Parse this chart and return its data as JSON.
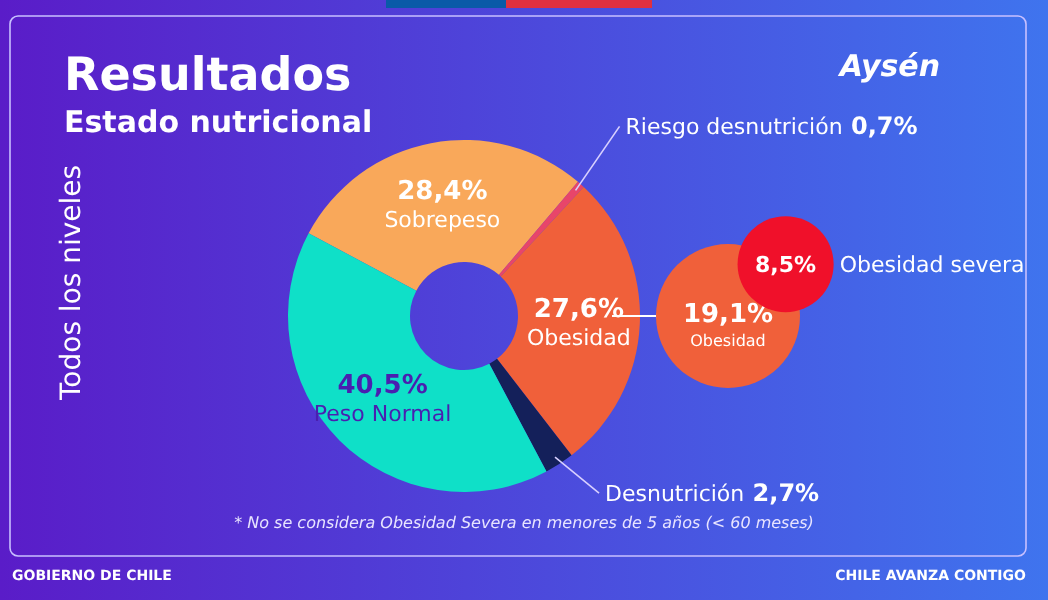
{
  "chart_data": [
    {
      "type": "donut",
      "title": "Resultados",
      "subtitle": "Estado nutricional",
      "categories": [
        "Sobrepeso",
        "Riesgo desnutrición",
        "Obesidad",
        "Desnutrición",
        "Peso Normal"
      ],
      "values": [
        28.4,
        0.7,
        27.6,
        2.7,
        40.5
      ],
      "value_labels": [
        "28,4%",
        "0,7%",
        "27,6%",
        "2,7%",
        "40,5%"
      ],
      "colors": [
        "#f9a85a",
        "#e8456a",
        "#f0603a",
        "#14205a",
        "#0fe0c8"
      ],
      "annotations": [
        "Aysén",
        "Todos los niveles",
        "* No se considera Obesidad Severa en menores de 5 años (< 60 meses)",
        "GOBIERNO DE CHILE",
        "CHILE AVANZA CONTIGO"
      ]
    },
    {
      "type": "other",
      "categories": [
        "Obesidad",
        "Obesidad severa"
      ],
      "values": [
        19.1,
        8.5
      ],
      "value_labels": [
        "19,1%",
        "8,5%"
      ],
      "colors": [
        "#f0603a",
        "#f0102a"
      ]
    }
  ]
}
